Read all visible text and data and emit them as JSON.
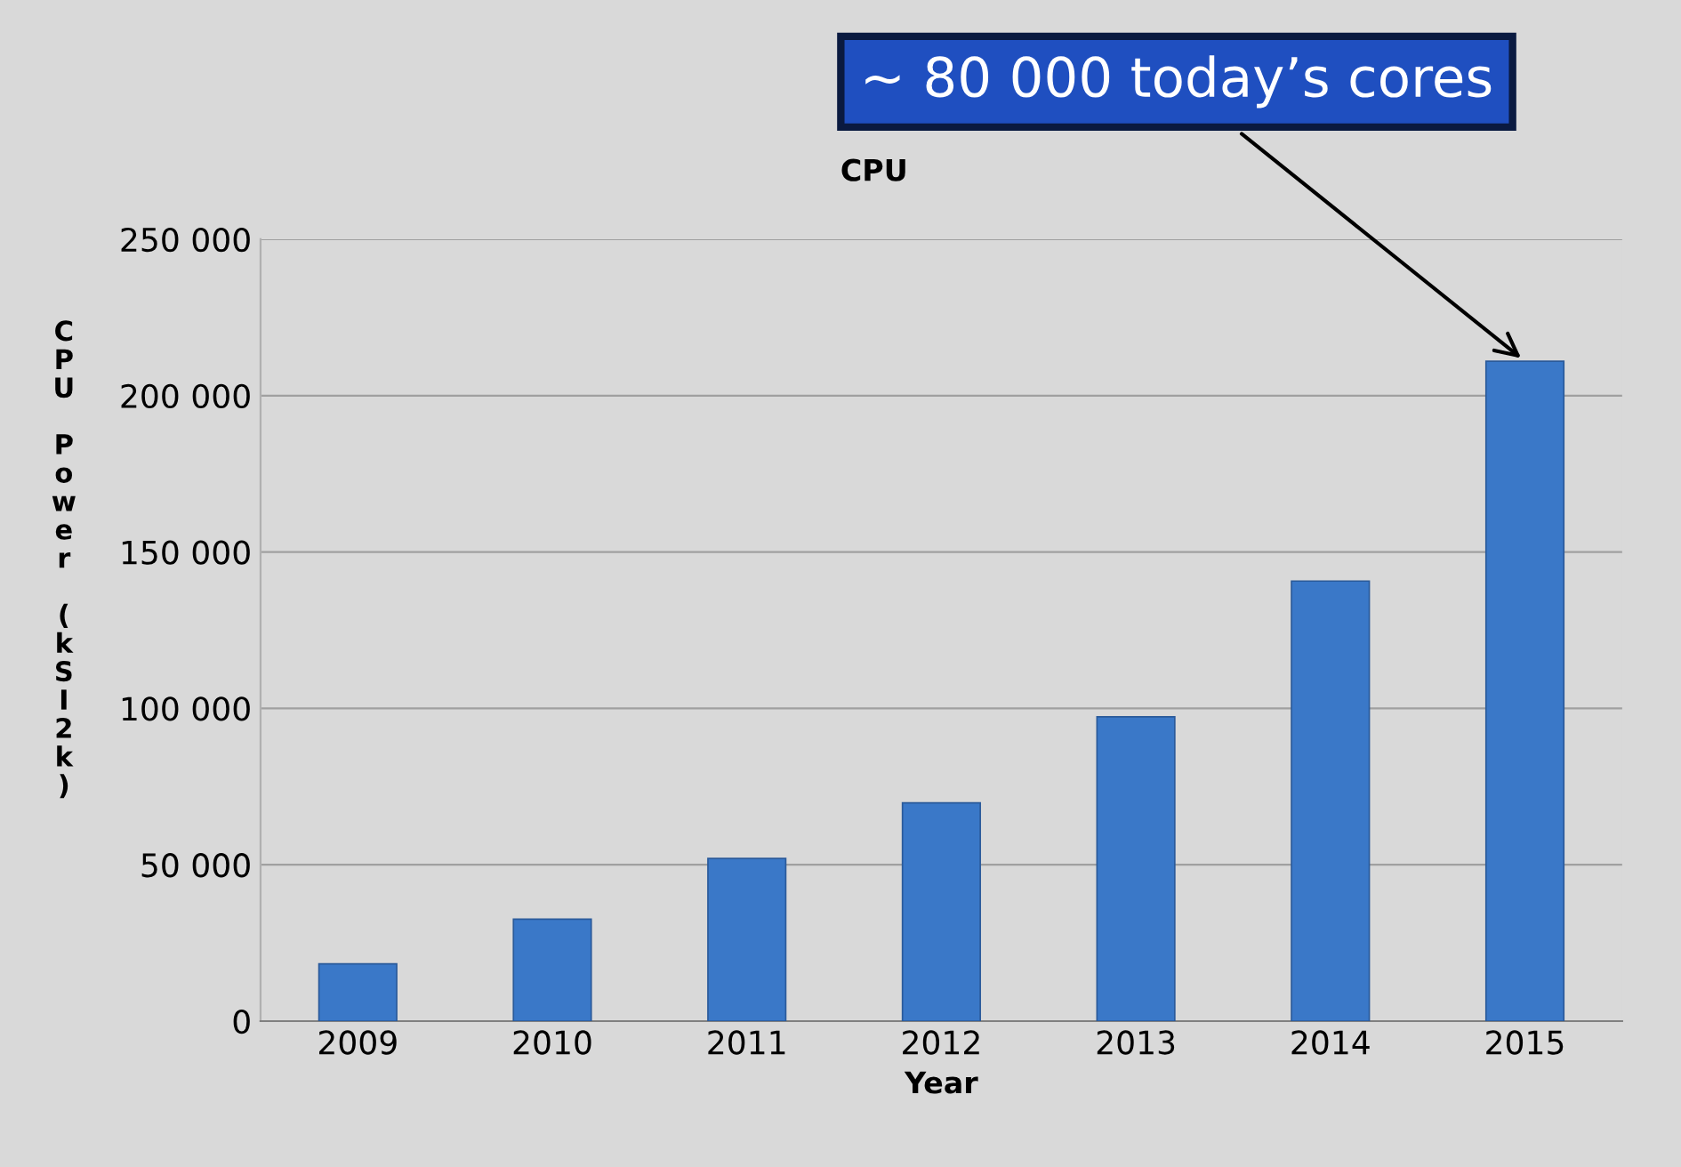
{
  "chart_data": {
    "type": "bar",
    "title": "CPU",
    "xlabel": "Year",
    "ylabel": "CPU Power (kSI2k)",
    "categories": [
      "2009",
      "2010",
      "2011",
      "2012",
      "2013",
      "2014",
      "2015"
    ],
    "values": [
      18300,
      32600,
      52000,
      69800,
      97300,
      140700,
      211000
    ],
    "color": "#3a78c8",
    "ylim": [
      0,
      250000
    ],
    "yticks": [
      {
        "value": 0,
        "label": "0"
      },
      {
        "value": 50000,
        "label": "50 000"
      },
      {
        "value": 100000,
        "label": "100 000"
      },
      {
        "value": 150000,
        "label": "150 000"
      },
      {
        "value": 200000,
        "label": "200 000"
      },
      {
        "value": 250000,
        "label": "250 000"
      }
    ],
    "grid": "y",
    "annotations": [
      {
        "text": "~ 80 000 today’s cores",
        "x": "2015",
        "y": 211000
      }
    ]
  }
}
